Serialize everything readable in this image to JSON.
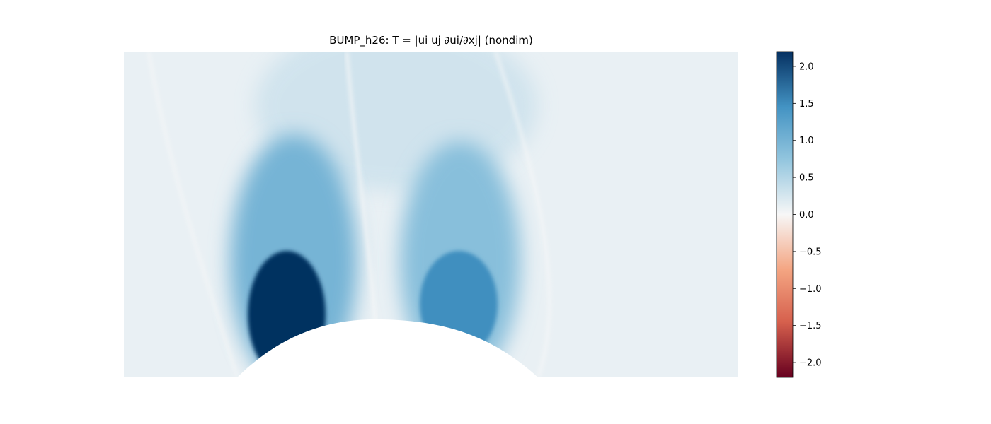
{
  "chart_data": {
    "type": "heatmap",
    "title": "BUMP_h26: T = |ui uj ∂ui/∂xj| (nondim)",
    "xlabel": "",
    "ylabel": "",
    "axes_visible": false,
    "grid": false,
    "colormap": "RdBu_r",
    "colors": {
      "min": "#67001f",
      "neg_mid": "#d6604d",
      "neg_light": "#f4a582",
      "zero": "#f7f7f7",
      "pos_light": "#92c5de",
      "pos_mid": "#4393c3",
      "max": "#053061"
    },
    "colorbar": {
      "position": "right",
      "vmin": -2.2,
      "vmax": 2.2,
      "ticks": [
        2.0,
        1.5,
        1.0,
        0.5,
        0.0,
        -0.5,
        -1.0,
        -1.5,
        -2.0
      ],
      "tick_labels": [
        "2.0",
        "1.5",
        "1.0",
        "0.5",
        "0.0",
        "−0.5",
        "−1.0",
        "−1.5",
        "−2.0"
      ]
    },
    "field_features": [
      {
        "feature": "lobe upstream of bump crest",
        "peak_value": 2.2
      },
      {
        "feature": "lobe downstream of bump crest",
        "peak_value": 1.5
      },
      {
        "feature": "far-field background",
        "value": 0.2
      }
    ]
  }
}
